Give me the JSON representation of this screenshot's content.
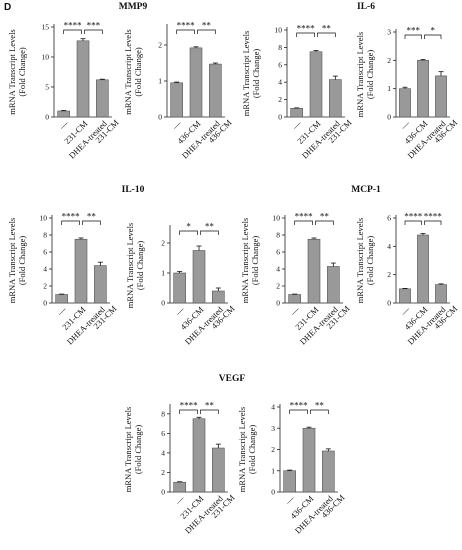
{
  "panel_label": "D",
  "groups": [
    {
      "id": "mmp9",
      "title": "MMP9"
    },
    {
      "id": "il6",
      "title": "IL-6"
    },
    {
      "id": "il10",
      "title": "IL-10"
    },
    {
      "id": "mcp1",
      "title": "MCP-1"
    },
    {
      "id": "vegf",
      "title": "VEGF"
    }
  ],
  "chart_data": [
    {
      "id": "mmp9-231",
      "group": "MMP9",
      "type": "bar",
      "ylabel": [
        "mRNA Transcript Levels",
        "(Fold Change)"
      ],
      "categories": [
        "—",
        "231-CM",
        "DHEA-treated 231-CM"
      ],
      "values": [
        1.0,
        12.7,
        6.2
      ],
      "errors": [
        0.1,
        0.35,
        0.1
      ],
      "ylim": [
        0,
        15
      ],
      "yticks": [
        0,
        5,
        10,
        15
      ],
      "significance": [
        "****",
        "***"
      ]
    },
    {
      "id": "mmp9-436",
      "group": "MMP9",
      "type": "bar",
      "ylabel": [
        "mRNA Transcript Levels",
        "(Fold Change)"
      ],
      "categories": [
        "—",
        "436-CM",
        "DHEA-treated 436-CM"
      ],
      "values": [
        0.95,
        1.92,
        1.47
      ],
      "errors": [
        0.02,
        0.03,
        0.03
      ],
      "ylim": [
        0,
        2.5
      ],
      "yticks": [
        0,
        1,
        2
      ],
      "significance": [
        "****",
        "**"
      ]
    },
    {
      "id": "il6-231",
      "group": "IL-6",
      "type": "bar",
      "ylabel": [
        "mRNA Transcript Levels",
        "(Fold Change)"
      ],
      "categories": [
        "—",
        "231-CM",
        "DHEA-treated 231-CM"
      ],
      "values": [
        1.0,
        7.5,
        4.3
      ],
      "errors": [
        0.05,
        0.15,
        0.4
      ],
      "ylim": [
        0,
        10
      ],
      "yticks": [
        0,
        2,
        4,
        6,
        8,
        10
      ],
      "significance": [
        "****",
        "**"
      ]
    },
    {
      "id": "il6-436",
      "group": "IL-6",
      "type": "bar",
      "ylabel": [
        "mRNA Transcript Levels",
        "(Fold Change)"
      ],
      "categories": [
        "—",
        "436-CM",
        "DHEA-treated 436-CM"
      ],
      "values": [
        1.0,
        2.0,
        1.45
      ],
      "errors": [
        0.05,
        0.03,
        0.15
      ],
      "ylim": [
        0,
        3
      ],
      "yticks": [
        0,
        1,
        2,
        3
      ],
      "significance": [
        "***",
        "*"
      ]
    },
    {
      "id": "il10-231",
      "group": "IL-10",
      "type": "bar",
      "ylabel": [
        "mRNA Transcript Levels",
        "(Fold Change)"
      ],
      "categories": [
        "—",
        "231-CM",
        "DHEA-treated 231-CM"
      ],
      "values": [
        1.0,
        7.5,
        4.4
      ],
      "errors": [
        0.05,
        0.15,
        0.4
      ],
      "ylim": [
        0,
        10
      ],
      "yticks": [
        0,
        2,
        4,
        6,
        8,
        10
      ],
      "significance": [
        "****",
        "**"
      ]
    },
    {
      "id": "il10-436",
      "group": "IL-10",
      "type": "bar",
      "ylabel": [
        "mRNA Transcript Levels",
        "(Fold Change)"
      ],
      "categories": [
        "—",
        "436-CM",
        "DHEA-treated 436-CM"
      ],
      "values": [
        1.0,
        1.75,
        0.4
      ],
      "errors": [
        0.05,
        0.15,
        0.1
      ],
      "ylim": [
        0,
        2.5
      ],
      "yticks": [
        0,
        1,
        2
      ],
      "significance": [
        "*",
        "**"
      ]
    },
    {
      "id": "mcp1-231",
      "group": "MCP-1",
      "type": "bar",
      "ylabel": [
        "mRNA Transcript Levels",
        "(Fold Change)"
      ],
      "categories": [
        "—",
        "231-CM",
        "DHEA-treated 231-CM"
      ],
      "values": [
        1.0,
        7.5,
        4.3
      ],
      "errors": [
        0.05,
        0.15,
        0.4
      ],
      "ylim": [
        0,
        10
      ],
      "yticks": [
        0,
        2,
        4,
        6,
        8,
        10
      ],
      "significance": [
        "****",
        "**"
      ]
    },
    {
      "id": "mcp1-436",
      "group": "MCP-1",
      "type": "bar",
      "ylabel": [
        "mRNA Transcript Levels",
        "(Fold Change)"
      ],
      "categories": [
        "—",
        "436-CM",
        "DHEA-treated 436-CM"
      ],
      "values": [
        1.0,
        4.8,
        1.3
      ],
      "errors": [
        0.03,
        0.1,
        0.05
      ],
      "ylim": [
        0,
        6
      ],
      "yticks": [
        0,
        2,
        4,
        6
      ],
      "significance": [
        "****",
        "****"
      ]
    },
    {
      "id": "vegf-231",
      "group": "VEGF",
      "type": "bar",
      "ylabel": [
        "mRNA Transcript Levels",
        "(Fold Change)"
      ],
      "categories": [
        "—",
        "231-CM",
        "DHEA-treated 231-CM"
      ],
      "values": [
        1.0,
        7.5,
        4.5
      ],
      "errors": [
        0.05,
        0.15,
        0.4
      ],
      "ylim": [
        0,
        8.7
      ],
      "yticks": [
        0,
        2,
        4,
        6,
        8
      ],
      "significance": [
        "****",
        "**"
      ]
    },
    {
      "id": "vegf-436",
      "group": "VEGF",
      "type": "bar",
      "ylabel": [
        "mRNA Transcript Levels",
        "(Fold Change)"
      ],
      "categories": [
        "—",
        "436-CM",
        "DHEA-treated 436-CM"
      ],
      "values": [
        1.0,
        3.0,
        1.93
      ],
      "errors": [
        0.03,
        0.05,
        0.1
      ],
      "ylim": [
        0,
        4
      ],
      "yticks": [
        0,
        1,
        2,
        3,
        4
      ],
      "significance": [
        "****",
        "**"
      ]
    }
  ],
  "style": {
    "bar_color": "#999999",
    "bar_stroke": "#555555",
    "axis_color": "#222222"
  }
}
